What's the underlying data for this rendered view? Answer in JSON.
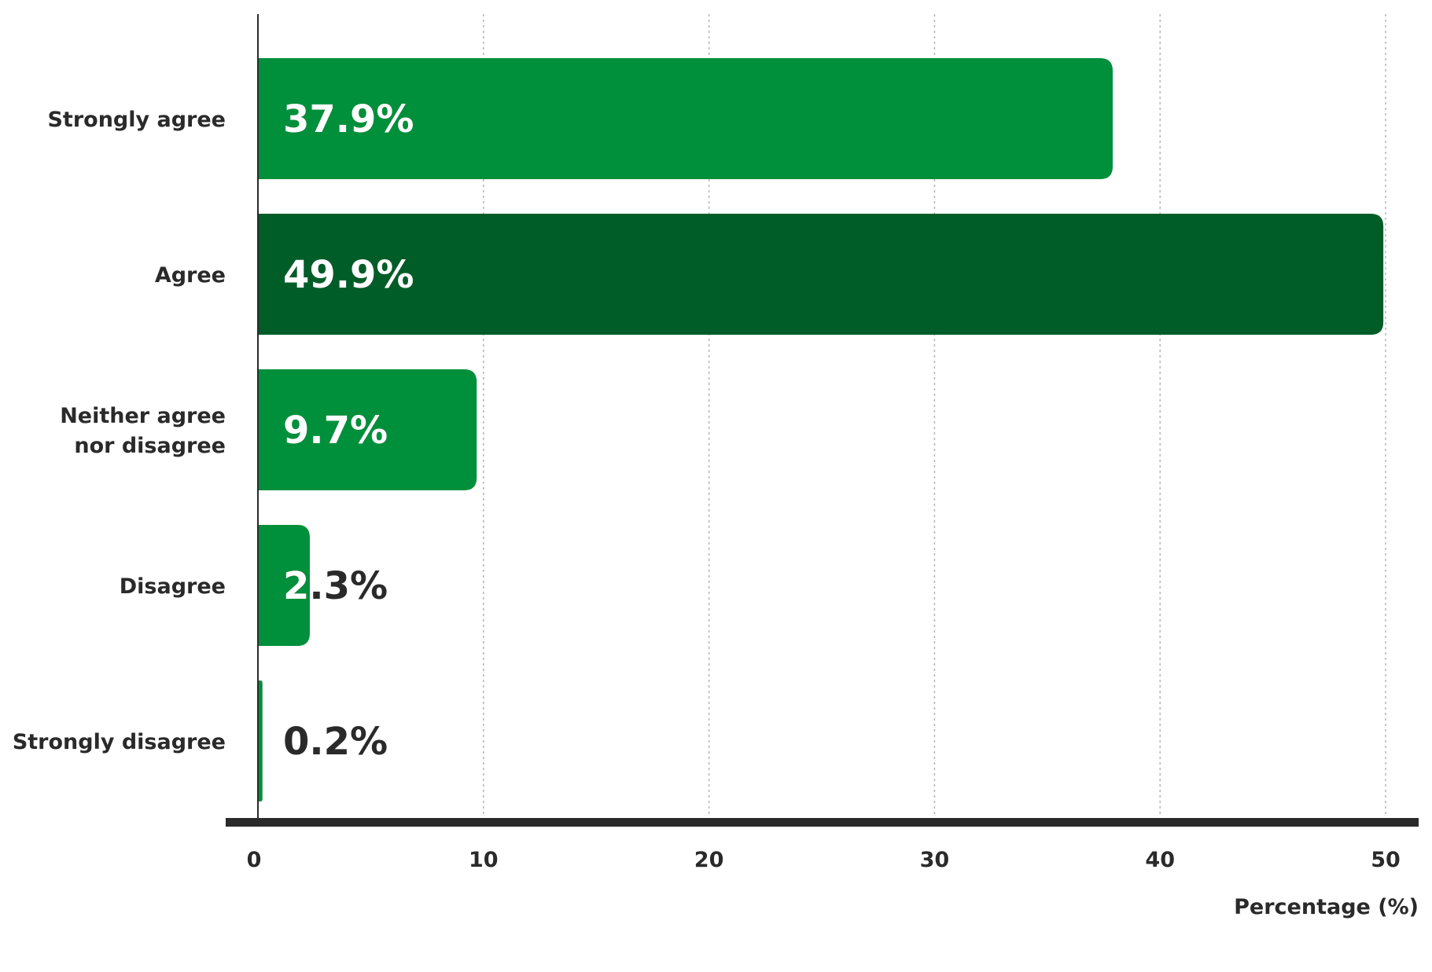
{
  "chart_data": {
    "type": "bar",
    "orientation": "horizontal",
    "categories": [
      [
        "Strongly agree"
      ],
      [
        "Agree"
      ],
      [
        "Neither agree",
        "nor disagree"
      ],
      [
        "Disagree"
      ],
      [
        "Strongly disagree"
      ]
    ],
    "values": [
      37.9,
      49.9,
      9.7,
      2.3,
      0.2
    ],
    "value_labels": [
      "37.9%",
      "49.9%",
      "9.7%",
      "2.3%",
      "0.2%"
    ],
    "highlight_index": 1,
    "xlabel": "Percentage (%)",
    "ylabel": "",
    "xlim": [
      0,
      50
    ],
    "xticks": [
      0,
      10,
      20,
      30,
      40,
      50
    ],
    "grid": true,
    "colors": {
      "bar": "#008f3a",
      "bar_highlight": "#005d28",
      "label_inside": "#ffffff",
      "label_outside": "#2a2a2a",
      "axis": "#2a2a2a"
    }
  }
}
